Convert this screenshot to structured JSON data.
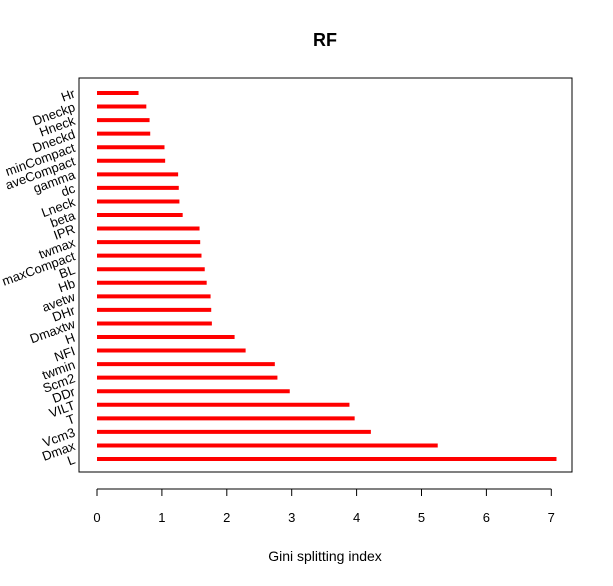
{
  "chart_data": {
    "type": "bar",
    "orientation": "horizontal",
    "title": "RF",
    "xlabel": "Gini splitting index",
    "ylabel": "",
    "xlim": [
      0,
      7.1
    ],
    "xticks": [
      "0",
      "1",
      "2",
      "3",
      "4",
      "5",
      "6",
      "7"
    ],
    "bar_color": "#ff0000",
    "categories": [
      "L",
      "Dmax",
      "Vcm3",
      "T",
      "VILT",
      "DDr",
      "Scm2",
      "twmin",
      "NFI",
      "H",
      "Dmaxtw",
      "DHr",
      "avetw",
      "Hb",
      "BL",
      "maxCompact",
      "twmax",
      "IPR",
      "beta",
      "Lneck",
      "dc",
      "gamma",
      "aveCompact",
      "minCompact",
      "Dneckd",
      "Hneck",
      "Dneckp",
      "Hr"
    ],
    "values": [
      7.08,
      5.25,
      4.22,
      3.97,
      3.89,
      2.97,
      2.78,
      2.74,
      2.29,
      2.12,
      1.77,
      1.76,
      1.75,
      1.69,
      1.66,
      1.61,
      1.59,
      1.58,
      1.32,
      1.27,
      1.26,
      1.25,
      1.05,
      1.04,
      0.82,
      0.81,
      0.76,
      0.64
    ]
  }
}
